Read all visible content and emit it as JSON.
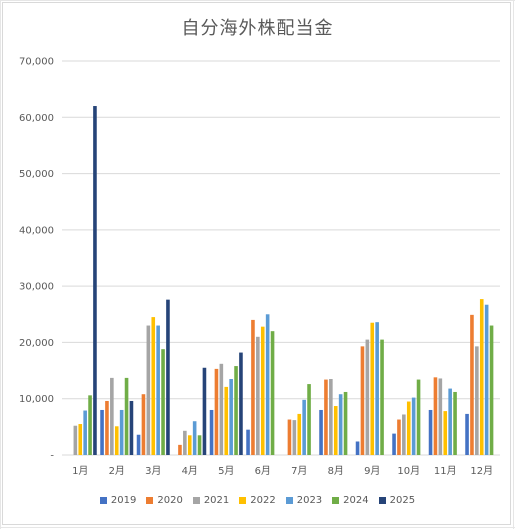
{
  "chart_data": {
    "type": "bar",
    "title": "自分海外株配当金",
    "categories": [
      "1月",
      "2月",
      "3月",
      "4月",
      "5月",
      "6月",
      "7月",
      "8月",
      "9月",
      "10月",
      "11月",
      "12月"
    ],
    "ylim": [
      0,
      70000
    ],
    "yticks": [
      0,
      10000,
      20000,
      30000,
      40000,
      50000,
      60000,
      70000
    ],
    "ytick_labels": [
      "-",
      "10,000",
      "20,000",
      "30,000",
      "40,000",
      "50,000",
      "60,000",
      "70,000"
    ],
    "grid": true,
    "legend_position": "bottom",
    "series": [
      {
        "name": "2019",
        "color": "#4472C4",
        "values": [
          0,
          8000,
          3600,
          0,
          8000,
          4500,
          0,
          8000,
          2400,
          3800,
          8000,
          7300
        ]
      },
      {
        "name": "2020",
        "color": "#ED7D31",
        "values": [
          0,
          9600,
          10800,
          1800,
          15300,
          24000,
          6300,
          13400,
          19300,
          6300,
          13800,
          24900
        ]
      },
      {
        "name": "2021",
        "color": "#A5A5A5",
        "values": [
          5200,
          13700,
          23000,
          4300,
          16200,
          21000,
          6200,
          13500,
          20500,
          7200,
          13600,
          19300
        ]
      },
      {
        "name": "2022",
        "color": "#FFC000",
        "values": [
          5500,
          5100,
          24500,
          3500,
          12100,
          22800,
          7300,
          8700,
          23500,
          9500,
          7800,
          27700
        ]
      },
      {
        "name": "2023",
        "color": "#5B9BD5",
        "values": [
          7900,
          8000,
          23000,
          6000,
          13500,
          25000,
          9800,
          10800,
          23600,
          10200,
          11800,
          26700
        ]
      },
      {
        "name": "2024",
        "color": "#70AD47",
        "values": [
          10600,
          13700,
          18800,
          3500,
          15800,
          22000,
          12600,
          11200,
          20500,
          13400,
          11200,
          23000
        ]
      },
      {
        "name": "2025",
        "color": "#264478",
        "values": [
          62000,
          9600,
          27600,
          15500,
          18200,
          0,
          0,
          0,
          0,
          0,
          0,
          0
        ]
      }
    ]
  }
}
